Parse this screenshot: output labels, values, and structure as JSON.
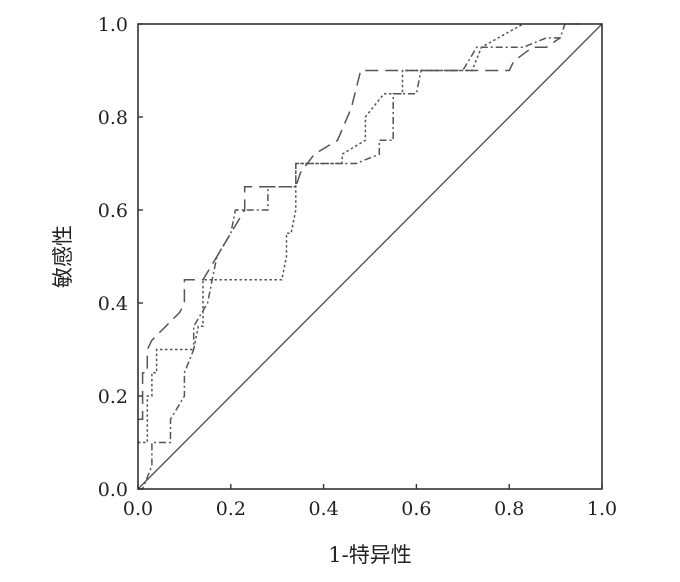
{
  "chart_data": {
    "type": "line",
    "title": "",
    "xlabel": "1-特异性",
    "ylabel": "敏感性",
    "xlim": [
      0,
      1
    ],
    "ylim": [
      0,
      1
    ],
    "xticks": [
      "0.0",
      "0.2",
      "0.4",
      "0.6",
      "0.8",
      "1.0"
    ],
    "yticks": [
      "0.0",
      "0.2",
      "0.4",
      "0.6",
      "0.8",
      "1.0"
    ],
    "grid": false,
    "legend": "none",
    "series": [
      {
        "style": "solid",
        "color": "#555555",
        "x": [
          0,
          1
        ],
        "y": [
          0,
          1
        ]
      },
      {
        "style": "long-dash",
        "color": "#555555",
        "x": [
          0,
          0.01,
          0.01,
          0.02,
          0.02,
          0.03,
          0.06,
          0.09,
          0.1,
          0.1,
          0.14,
          0.14,
          0.17,
          0.2,
          0.23,
          0.23,
          0.27,
          0.32,
          0.34,
          0.35,
          0.38,
          0.43,
          0.46,
          0.48,
          0.49,
          0.53,
          0.55,
          0.57,
          0.58,
          0.7,
          0.72,
          0.77,
          0.8,
          0.81,
          0.85,
          0.87,
          0.88,
          0.91
        ],
        "y": [
          0.15,
          0.15,
          0.25,
          0.25,
          0.3,
          0.32,
          0.35,
          0.38,
          0.4,
          0.45,
          0.45,
          0.45,
          0.5,
          0.55,
          0.6,
          0.65,
          0.65,
          0.65,
          0.65,
          0.68,
          0.72,
          0.75,
          0.82,
          0.9,
          0.9,
          0.9,
          0.9,
          0.9,
          0.9,
          0.9,
          0.9,
          0.9,
          0.9,
          0.92,
          0.95,
          0.95,
          0.95,
          0.97
        ]
      },
      {
        "style": "dotted",
        "color": "#555555",
        "x": [
          0,
          0.02,
          0.02,
          0.03,
          0.03,
          0.04,
          0.04,
          0.12,
          0.13,
          0.14,
          0.14,
          0.31,
          0.32,
          0.32,
          0.33,
          0.34,
          0.34,
          0.44,
          0.44,
          0.49,
          0.49,
          0.53,
          0.53,
          0.57,
          0.57,
          0.72,
          0.72,
          0.74,
          0.74,
          0.83
        ],
        "y": [
          0.1,
          0.1,
          0.2,
          0.2,
          0.25,
          0.25,
          0.3,
          0.3,
          0.35,
          0.35,
          0.45,
          0.45,
          0.5,
          0.55,
          0.55,
          0.6,
          0.7,
          0.7,
          0.72,
          0.75,
          0.8,
          0.85,
          0.85,
          0.85,
          0.9,
          0.9,
          0.9,
          0.95,
          0.95,
          1.0
        ]
      },
      {
        "style": "dash-dot",
        "color": "#555555",
        "x": [
          0,
          0.01,
          0.03,
          0.03,
          0.07,
          0.07,
          0.1,
          0.1,
          0.12,
          0.12,
          0.15,
          0.16,
          0.17,
          0.2,
          0.21,
          0.23,
          0.28,
          0.28,
          0.3,
          0.34,
          0.34,
          0.37,
          0.4,
          0.47,
          0.52,
          0.52,
          0.55,
          0.55,
          0.6,
          0.61,
          0.64,
          0.7,
          0.7,
          0.73,
          0.75,
          0.8,
          0.83,
          0.88,
          0.91,
          0.92,
          0.95
        ],
        "y": [
          0.0,
          0.0,
          0.05,
          0.1,
          0.1,
          0.15,
          0.2,
          0.25,
          0.3,
          0.35,
          0.4,
          0.45,
          0.5,
          0.55,
          0.6,
          0.6,
          0.6,
          0.65,
          0.65,
          0.65,
          0.7,
          0.7,
          0.7,
          0.7,
          0.72,
          0.75,
          0.75,
          0.85,
          0.85,
          0.9,
          0.9,
          0.9,
          0.9,
          0.95,
          0.95,
          0.95,
          0.95,
          0.97,
          0.97,
          1.0,
          1.0
        ]
      }
    ]
  }
}
